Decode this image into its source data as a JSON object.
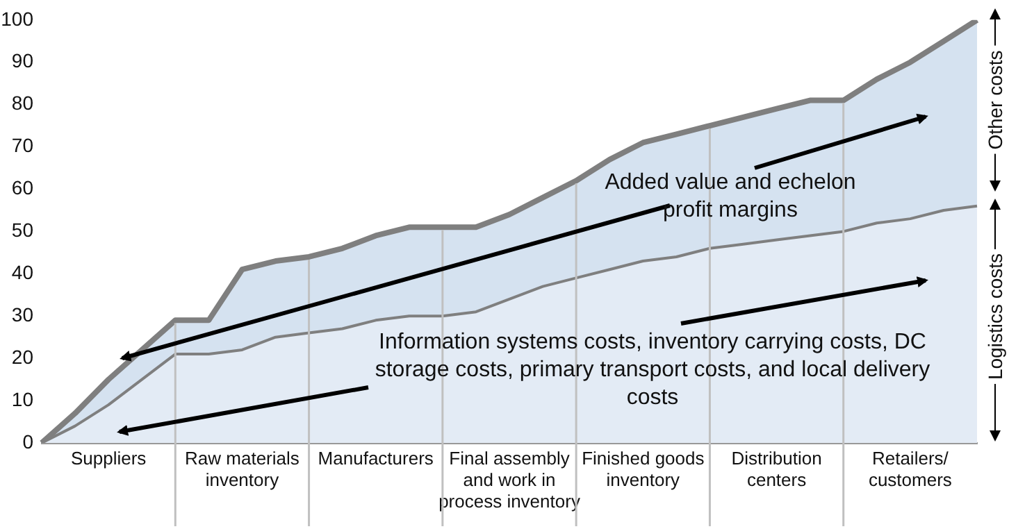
{
  "chart_data": {
    "type": "area",
    "ylim": [
      0,
      100
    ],
    "yticks": [
      0,
      10,
      20,
      30,
      40,
      50,
      60,
      70,
      80,
      90,
      100
    ],
    "categories": [
      null,
      null,
      "Suppliers",
      null,
      null,
      null,
      "Raw materials inventory",
      null,
      null,
      null,
      "Manufacturers",
      null,
      null,
      null,
      "Final assembly and work in process inventory",
      null,
      null,
      null,
      "Finished goods inventory",
      null,
      null,
      null,
      "Distribution centers",
      null,
      null,
      null,
      "Retailers/ customers",
      null,
      null
    ],
    "series": [
      {
        "color": "#7f7f7f",
        "values": [
          0,
          4,
          9,
          15,
          21,
          21,
          22,
          25,
          26,
          27,
          29,
          30,
          30,
          31,
          34,
          37,
          39,
          41,
          43,
          44,
          46,
          47,
          48,
          49,
          50,
          52,
          53,
          55,
          56
        ]
      },
      {
        "color": "#7f7f7f",
        "values": [
          0,
          7,
          15,
          22,
          29,
          29,
          41,
          43,
          44,
          46,
          49,
          51,
          51,
          51,
          54,
          58,
          62,
          67,
          71,
          73,
          75,
          77,
          79,
          81,
          81,
          86,
          90,
          95,
          100
        ]
      }
    ],
    "annotations": [
      "Added value and echelon profit margins",
      "Information systems costs, inventory carrying costs, DC storage costs, primary transport costs, and local delivery costs",
      "Other costs",
      "Logistics costs"
    ],
    "marker": "none",
    "legend": false,
    "grid": "x"
  }
}
